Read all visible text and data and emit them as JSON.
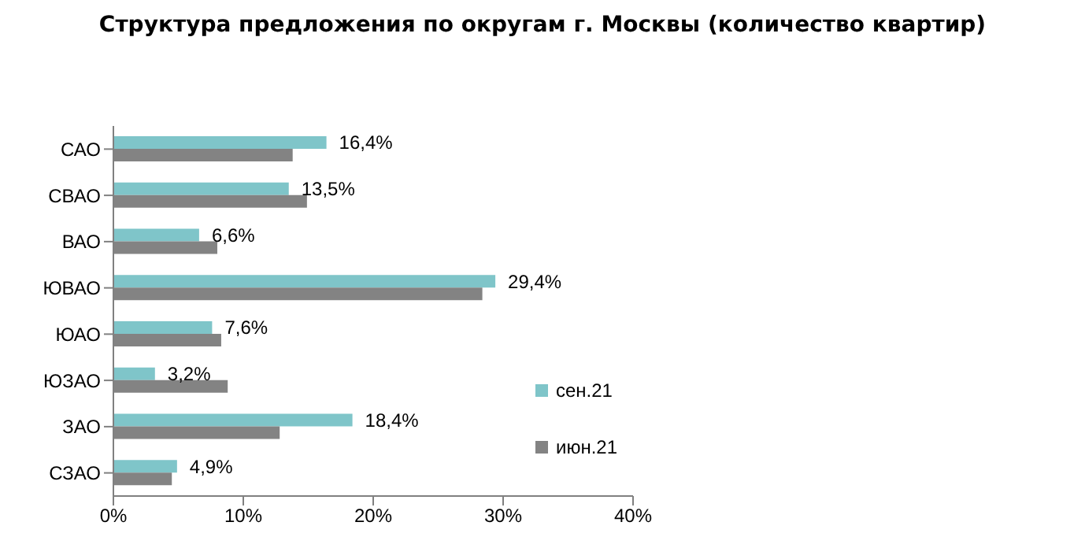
{
  "chart_data": {
    "type": "bar",
    "orientation": "horizontal",
    "title": "Структура предложения по округам г. Москвы (количество квартир)",
    "categories": [
      "САО",
      "СВАО",
      "ВАО",
      "ЮВАО",
      "ЮАО",
      "ЮЗАО",
      "ЗАО",
      "СЗАО"
    ],
    "series": [
      {
        "name": "сен.21",
        "color": "#7fc5c9",
        "values": [
          16.4,
          13.5,
          6.6,
          29.4,
          7.6,
          3.2,
          18.4,
          4.9
        ],
        "value_labels": [
          "16,4%",
          "13,5%",
          "6,6%",
          "29,4%",
          "7,6%",
          "3,2%",
          "18,4%",
          "4,9%"
        ]
      },
      {
        "name": "июн.21",
        "color": "#838383",
        "values": [
          13.8,
          14.9,
          8.0,
          28.4,
          8.3,
          8.8,
          12.8,
          4.5
        ]
      }
    ],
    "xlim": [
      0,
      40
    ],
    "xticks": [
      {
        "value": 0,
        "label": "0%"
      },
      {
        "value": 10,
        "label": "10%"
      },
      {
        "value": 20,
        "label": "20%"
      },
      {
        "value": 30,
        "label": "30%"
      },
      {
        "value": 40,
        "label": "40%"
      }
    ],
    "grid": false,
    "legend": "right"
  }
}
